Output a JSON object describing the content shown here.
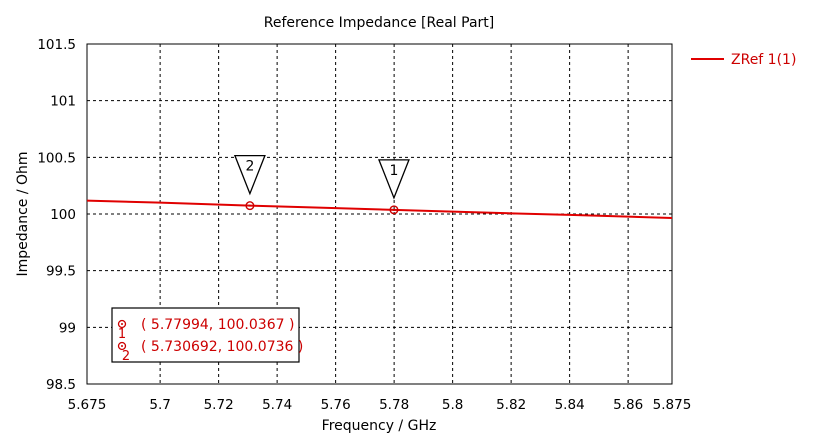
{
  "chart_data": {
    "type": "line",
    "title": "Reference Impedance [Real Part]",
    "xlabel": "Frequency / GHz",
    "ylabel": "Impedance / Ohm",
    "xlim": [
      5.675,
      5.875
    ],
    "ylim": [
      98.5,
      101.5
    ],
    "xticks": [
      5.675,
      5.7,
      5.72,
      5.74,
      5.76,
      5.78,
      5.8,
      5.82,
      5.84,
      5.86,
      5.875
    ],
    "xtick_labels": [
      "5.675",
      "5.7",
      "5.72",
      "5.74",
      "5.76",
      "5.78",
      "5.8",
      "5.82",
      "5.84",
      "5.86",
      "5.875"
    ],
    "yticks": [
      98.5,
      99,
      99.5,
      100,
      100.5,
      101,
      101.5
    ],
    "ytick_labels": [
      "98.5",
      "99",
      "99.5",
      "100",
      "100.5",
      "101",
      "101.5"
    ],
    "grid": true,
    "legend_position": "top-right, outside plot",
    "series": [
      {
        "name": "ZRef 1(1)",
        "color": "#e00000",
        "x": [
          5.675,
          5.7,
          5.730692,
          5.75,
          5.77994,
          5.8,
          5.82,
          5.84,
          5.86,
          5.875
        ],
        "y": [
          100.118,
          100.1,
          100.0736,
          100.06,
          100.0367,
          100.021,
          100.006,
          99.992,
          99.977,
          99.965
        ]
      }
    ],
    "markers": [
      {
        "id": "1",
        "x": 5.77994,
        "y": 100.0367,
        "label": "( 5.77994, 100.0367 )"
      },
      {
        "id": "2",
        "x": 5.730692,
        "y": 100.0736,
        "label": "( 5.730692, 100.0736 )"
      }
    ]
  }
}
